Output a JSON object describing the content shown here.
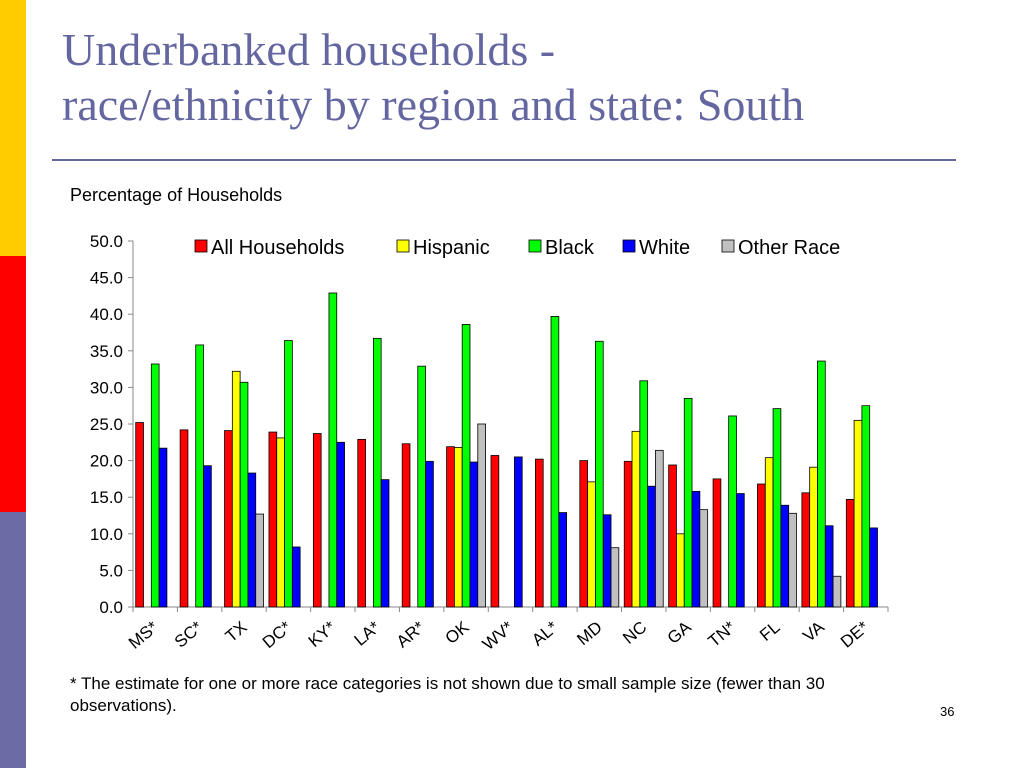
{
  "slide": {
    "title_line1": "Underbanked households -",
    "title_line2": "race/ethnicity by region and state: South",
    "footnote": "* The estimate for one or more race categories is not shown due to small sample size (fewer than 30 observations).",
    "page_number": "36"
  },
  "colors": {
    "sidebar": [
      "#ffcc00",
      "#ff0000",
      "#6b6ba6"
    ],
    "title": "#6466a0",
    "rule": "#6466a0"
  },
  "chart_data": {
    "type": "bar",
    "ylabel": "Percentage of Households",
    "ylim": [
      0,
      50
    ],
    "ytick_step": 5,
    "yticks": [
      "0.0",
      "5.0",
      "10.0",
      "15.0",
      "20.0",
      "25.0",
      "30.0",
      "35.0",
      "40.0",
      "45.0",
      "50.0"
    ],
    "legend_position": "top",
    "grid": false,
    "categories": [
      "MS*",
      "SC*",
      "TX",
      "DC*",
      "KY*",
      "LA*",
      "AR*",
      "OK",
      "WV*",
      "AL*",
      "MD",
      "NC",
      "GA",
      "TN*",
      "FL",
      "VA",
      "DE*"
    ],
    "series": [
      {
        "name": "All Households",
        "color": "#ff0000",
        "values": [
          25.2,
          24.2,
          24.1,
          23.9,
          23.7,
          22.9,
          22.3,
          21.9,
          20.7,
          20.2,
          20.0,
          19.9,
          19.4,
          17.5,
          16.8,
          15.6,
          14.7
        ]
      },
      {
        "name": "Hispanic",
        "color": "#ffff00",
        "values": [
          null,
          null,
          32.2,
          23.1,
          null,
          null,
          null,
          21.8,
          null,
          null,
          17.1,
          24.0,
          10.0,
          null,
          20.4,
          19.1,
          25.5
        ]
      },
      {
        "name": "Black",
        "color": "#00ff00",
        "values": [
          33.2,
          35.8,
          30.7,
          36.4,
          42.9,
          36.7,
          32.9,
          38.6,
          null,
          39.7,
          36.3,
          30.9,
          28.5,
          26.1,
          27.1,
          33.6,
          27.5
        ]
      },
      {
        "name": "White",
        "color": "#0000ff",
        "values": [
          21.7,
          19.3,
          18.3,
          8.2,
          22.5,
          17.4,
          19.9,
          19.8,
          20.5,
          12.9,
          12.6,
          16.5,
          15.8,
          15.5,
          13.9,
          11.1,
          10.8
        ]
      },
      {
        "name": "Other Race",
        "color": "#c0c0c0",
        "values": [
          null,
          null,
          12.7,
          null,
          null,
          null,
          null,
          25.0,
          null,
          null,
          8.1,
          21.4,
          13.3,
          null,
          12.8,
          4.2,
          null
        ]
      }
    ]
  }
}
